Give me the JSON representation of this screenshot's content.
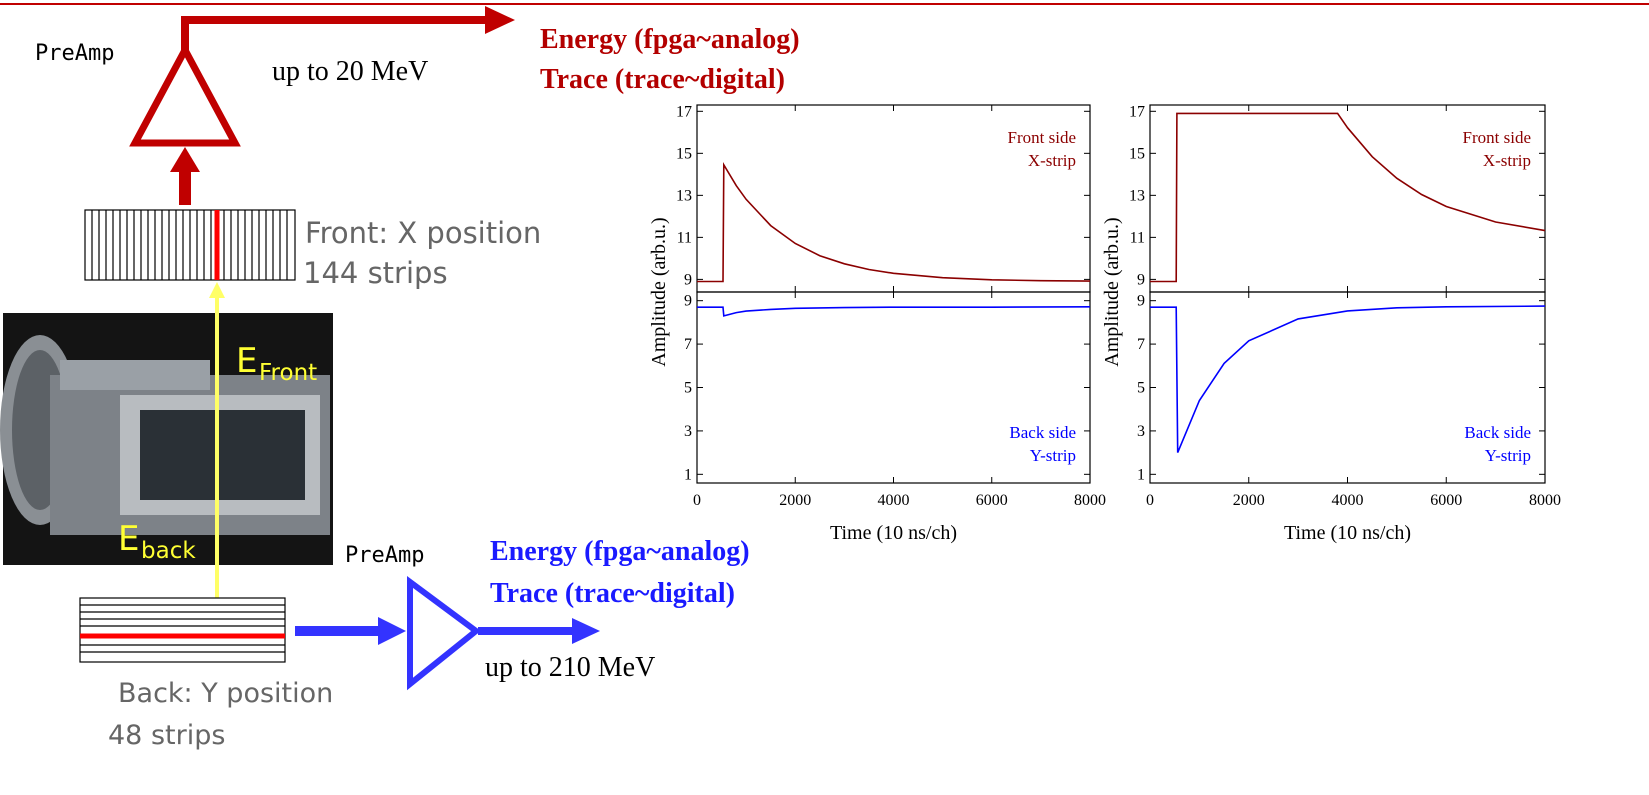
{
  "diagram": {
    "top_preamp": "PreAmp",
    "top_range": "up to 20 MeV",
    "top_energy": "Energy (fpga~analog)",
    "top_trace": "Trace (trace~digital)",
    "front_position": "Front: X position",
    "front_strips": "144 strips",
    "e_front": {
      "symbol": "E",
      "subscript": "Front"
    },
    "e_back": {
      "symbol": "E",
      "subscript": "back"
    },
    "bottom_preamp": "PreAmp",
    "bottom_energy": "Energy (fpga~analog)",
    "bottom_trace": "Trace (trace~digital)",
    "bottom_range": "up to 210 MeV",
    "back_position": "Back: Y position",
    "back_strips": "48 strips"
  },
  "chart_data": [
    {
      "type": "line",
      "ylabel": "Amplitude (arb.u.)",
      "color": "#8b0000",
      "x": [
        0,
        530,
        545,
        800,
        1000,
        1500,
        2000,
        2500,
        3000,
        3500,
        4000,
        5000,
        6000,
        7000,
        8000
      ],
      "values": [
        8.9,
        8.9,
        14.45,
        13.46,
        12.81,
        11.56,
        10.71,
        10.13,
        9.74,
        9.47,
        9.29,
        9.08,
        8.98,
        8.94,
        8.92
      ],
      "annotations": [
        "Front side",
        "X-strip"
      ],
      "xlim": [
        0,
        8000
      ],
      "ylim": [
        8.4,
        17.3
      ],
      "yticks": [
        9,
        11,
        13,
        15,
        17
      ]
    },
    {
      "type": "line",
      "xlabel": "Time (10 ns/ch)",
      "color": "#0000ff",
      "x": [
        0,
        530,
        545,
        800,
        1000,
        1500,
        2000,
        3000,
        4000,
        6000,
        8000
      ],
      "values": [
        8.7,
        8.7,
        8.3,
        8.45,
        8.52,
        8.6,
        8.65,
        8.68,
        8.7,
        8.7,
        8.72
      ],
      "annotations": [
        "Back side",
        "Y-strip"
      ],
      "xlim": [
        0,
        8000
      ],
      "ylim": [
        0.6,
        9.4
      ],
      "xticks": [
        0,
        2000,
        4000,
        6000,
        8000
      ],
      "yticks": [
        1,
        3,
        5,
        7,
        9
      ]
    },
    {
      "type": "line",
      "ylabel": "Amplitude (arb.u.)",
      "color": "#8b0000",
      "x": [
        0,
        530,
        545,
        3800,
        4000,
        4500,
        5000,
        5500,
        6000,
        7000,
        8000
      ],
      "values": [
        8.9,
        8.9,
        16.9,
        16.9,
        16.22,
        14.84,
        13.81,
        13.04,
        12.47,
        11.73,
        11.32
      ],
      "annotations": [
        "Front side",
        "X-strip"
      ],
      "xlim": [
        0,
        8000
      ],
      "ylim": [
        8.4,
        17.3
      ],
      "yticks": [
        9,
        11,
        13,
        15,
        17
      ]
    },
    {
      "type": "line",
      "xlabel": "Time (10 ns/ch)",
      "color": "#0000ff",
      "x": [
        0,
        530,
        560,
        1000,
        1500,
        2000,
        3000,
        4000,
        5000,
        6000,
        8000
      ],
      "values": [
        8.7,
        8.7,
        2.0,
        4.4,
        6.11,
        7.15,
        8.16,
        8.53,
        8.67,
        8.72,
        8.75
      ],
      "annotations": [
        "Back side",
        "Y-strip"
      ],
      "xlim": [
        0,
        8000
      ],
      "ylim": [
        0.6,
        9.4
      ],
      "xticks": [
        0,
        2000,
        4000,
        6000,
        8000
      ],
      "yticks": [
        1,
        3,
        5,
        7,
        9
      ]
    }
  ]
}
